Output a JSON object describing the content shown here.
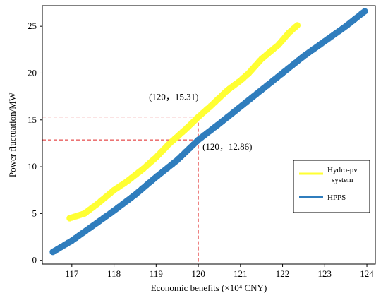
{
  "chart_data": {
    "type": "scatter",
    "xlabel": "Economic benefits (×10⁴ CNY)",
    "ylabel": "Power fluctuation/MW",
    "xlim": [
      116.3,
      124.2
    ],
    "ylim": [
      -0.4,
      27.2
    ],
    "xticks": [
      117,
      118,
      119,
      120,
      121,
      122,
      123,
      124
    ],
    "yticks": [
      0,
      5,
      10,
      15,
      20,
      25
    ],
    "grid": false,
    "legend_position": "right",
    "series": [
      {
        "name": "Hydro-pv system",
        "color": "#ffff33",
        "points": [
          [
            116.95,
            4.5
          ],
          [
            117.3,
            5.0
          ],
          [
            117.6,
            6.0
          ],
          [
            118.0,
            7.5
          ],
          [
            118.3,
            8.4
          ],
          [
            118.7,
            9.8
          ],
          [
            119.0,
            11.0
          ],
          [
            119.3,
            12.4
          ],
          [
            119.7,
            14.0
          ],
          [
            120.0,
            15.31
          ],
          [
            120.3,
            16.5
          ],
          [
            120.7,
            18.2
          ],
          [
            121.0,
            19.2
          ],
          [
            121.2,
            20.0
          ],
          [
            121.5,
            21.5
          ],
          [
            121.9,
            23.0
          ],
          [
            122.15,
            24.3
          ],
          [
            122.35,
            25.1
          ]
        ]
      },
      {
        "name": "HPPS",
        "color": "#2f7dbd",
        "points": [
          [
            116.55,
            0.9
          ],
          [
            117.0,
            2.1
          ],
          [
            117.5,
            3.7
          ],
          [
            118.0,
            5.3
          ],
          [
            118.5,
            7.0
          ],
          [
            119.0,
            8.9
          ],
          [
            119.5,
            10.7
          ],
          [
            120.0,
            12.86
          ],
          [
            120.5,
            14.6
          ],
          [
            121.0,
            16.4
          ],
          [
            121.5,
            18.2
          ],
          [
            122.0,
            20.0
          ],
          [
            122.5,
            21.8
          ],
          [
            123.0,
            23.4
          ],
          [
            123.5,
            25.0
          ],
          [
            123.95,
            26.6
          ]
        ]
      }
    ],
    "annotations": [
      {
        "label": "(120，15.31)",
        "x": 120,
        "y": 15.31
      },
      {
        "label": "(120，12.86)",
        "x": 120,
        "y": 12.86
      }
    ],
    "reference_line_color": "#e02020"
  }
}
